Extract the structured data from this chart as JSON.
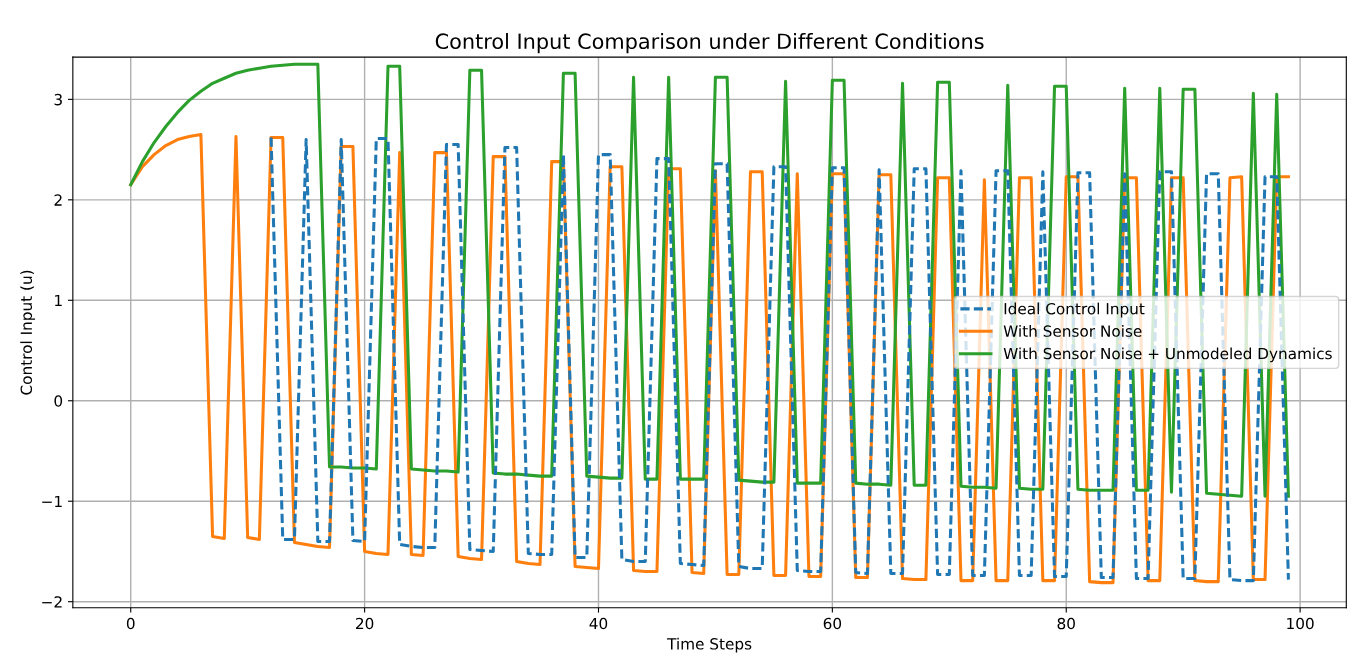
{
  "chart_data": {
    "type": "line",
    "title": "Control Input Comparison under Different Conditions",
    "xlabel": "Time Steps",
    "ylabel": "Control Input (u)",
    "x": [
      0,
      1,
      2,
      3,
      4,
      5,
      6,
      7,
      8,
      9,
      10,
      11,
      12,
      13,
      14,
      15,
      16,
      17,
      18,
      19,
      20,
      21,
      22,
      23,
      24,
      25,
      26,
      27,
      28,
      29,
      30,
      31,
      32,
      33,
      34,
      35,
      36,
      37,
      38,
      39,
      40,
      41,
      42,
      43,
      44,
      45,
      46,
      47,
      48,
      49,
      50,
      51,
      52,
      53,
      54,
      55,
      56,
      57,
      58,
      59,
      60,
      61,
      62,
      63,
      64,
      65,
      66,
      67,
      68,
      69,
      70,
      71,
      72,
      73,
      74,
      75,
      76,
      77,
      78,
      79,
      80,
      81,
      82,
      83,
      84,
      85,
      86,
      87,
      88,
      89,
      90,
      91,
      92,
      93,
      94,
      95,
      96,
      97,
      98,
      99
    ],
    "series": [
      {
        "name": "Ideal Control Input",
        "color": "#1f77b4",
        "line_style": "dashed",
        "values": [
          null,
          null,
          null,
          null,
          null,
          null,
          null,
          null,
          null,
          null,
          null,
          null,
          2.62,
          -1.38,
          -1.38,
          2.6,
          -1.4,
          -1.4,
          2.6,
          -1.39,
          -1.4,
          2.61,
          2.61,
          -1.43,
          -1.45,
          -1.46,
          -1.46,
          2.55,
          2.55,
          -1.48,
          -1.49,
          -1.5,
          2.52,
          2.52,
          -1.52,
          -1.53,
          -1.53,
          2.45,
          -1.56,
          -1.56,
          2.45,
          2.45,
          -1.58,
          -1.6,
          -1.6,
          2.41,
          2.41,
          -1.62,
          -1.63,
          -1.64,
          2.36,
          2.36,
          -1.65,
          -1.67,
          -1.67,
          2.33,
          2.33,
          -1.69,
          -1.7,
          -1.7,
          2.32,
          2.32,
          -1.71,
          -1.72,
          2.3,
          -1.72,
          -1.72,
          2.31,
          2.31,
          -1.73,
          -1.73,
          2.29,
          -1.74,
          -1.74,
          2.29,
          2.29,
          -1.74,
          -1.74,
          2.28,
          -1.75,
          -1.75,
          2.27,
          2.27,
          -1.76,
          -1.76,
          2.26,
          -1.77,
          -1.77,
          2.28,
          2.28,
          -1.77,
          -1.77,
          2.26,
          2.26,
          -1.78,
          -1.79,
          -1.79,
          2.23,
          2.23,
          -1.78
        ]
      },
      {
        "name": "With Sensor Noise",
        "color": "#ff7f0e",
        "line_style": "solid",
        "values": [
          2.15,
          2.33,
          2.45,
          2.54,
          2.6,
          2.63,
          2.65,
          -1.35,
          -1.37,
          2.63,
          -1.36,
          -1.38,
          2.62,
          2.62,
          -1.41,
          -1.43,
          -1.45,
          -1.46,
          2.53,
          2.53,
          -1.5,
          -1.52,
          -1.53,
          2.47,
          -1.53,
          -1.54,
          2.47,
          2.47,
          -1.55,
          -1.57,
          -1.58,
          2.43,
          2.43,
          -1.6,
          -1.62,
          -1.63,
          2.38,
          2.38,
          -1.65,
          -1.66,
          -1.67,
          2.33,
          2.33,
          -1.69,
          -1.7,
          -1.7,
          2.31,
          2.31,
          -1.71,
          -1.72,
          2.29,
          -1.73,
          -1.73,
          2.28,
          2.28,
          -1.74,
          -1.74,
          2.26,
          -1.75,
          -1.75,
          2.26,
          2.26,
          -1.76,
          -1.76,
          2.25,
          2.25,
          -1.77,
          -1.78,
          -1.78,
          2.22,
          2.22,
          -1.79,
          -1.79,
          2.2,
          -1.79,
          -1.79,
          2.22,
          2.22,
          -1.79,
          -1.79,
          2.23,
          2.23,
          -1.8,
          -1.81,
          -1.81,
          2.22,
          2.22,
          -1.79,
          -1.79,
          2.22,
          2.22,
          -1.79,
          -1.8,
          -1.8,
          2.22,
          2.23,
          -1.78,
          -1.78,
          2.23,
          2.23
        ]
      },
      {
        "name": "With Sensor Noise + Unmodeled Dynamics",
        "color": "#2ca02c",
        "line_style": "solid",
        "values": [
          2.15,
          2.38,
          2.57,
          2.73,
          2.87,
          2.99,
          3.08,
          3.16,
          3.21,
          3.26,
          3.29,
          3.31,
          3.33,
          3.34,
          3.35,
          3.35,
          3.35,
          -0.66,
          -0.66,
          -0.67,
          -0.67,
          -0.68,
          3.33,
          3.33,
          -0.68,
          -0.69,
          -0.7,
          -0.7,
          -0.71,
          3.29,
          3.29,
          -0.72,
          -0.73,
          -0.73,
          -0.74,
          -0.75,
          -0.75,
          3.26,
          3.26,
          -0.75,
          -0.76,
          -0.77,
          -0.77,
          3.22,
          -0.78,
          -0.78,
          3.22,
          -0.78,
          -0.78,
          -0.78,
          3.22,
          3.22,
          -0.79,
          -0.8,
          -0.81,
          -0.81,
          3.18,
          -0.82,
          -0.82,
          -0.82,
          3.19,
          3.19,
          -0.82,
          -0.83,
          -0.83,
          -0.84,
          3.16,
          -0.84,
          -0.84,
          3.17,
          3.17,
          -0.85,
          -0.86,
          -0.86,
          -0.87,
          3.14,
          -0.87,
          -0.88,
          -0.88,
          3.13,
          3.13,
          -0.88,
          -0.89,
          -0.89,
          -0.89,
          3.11,
          -0.89,
          -0.89,
          3.11,
          -0.91,
          3.1,
          3.1,
          -0.92,
          -0.93,
          -0.94,
          -0.95,
          3.06,
          -0.95,
          3.05,
          -0.95
        ]
      }
    ],
    "xlim": [
      -4.95,
      103.95
    ],
    "xticks": [
      0,
      20,
      40,
      60,
      80,
      100
    ],
    "ylim": [
      -2.06,
      3.42
    ],
    "yticks": [
      {
        "value": -2,
        "label": "−2"
      },
      {
        "value": -1,
        "label": "−1"
      },
      0,
      1,
      2,
      3
    ],
    "grid": true,
    "legend": "center right",
    "marker": "none"
  }
}
